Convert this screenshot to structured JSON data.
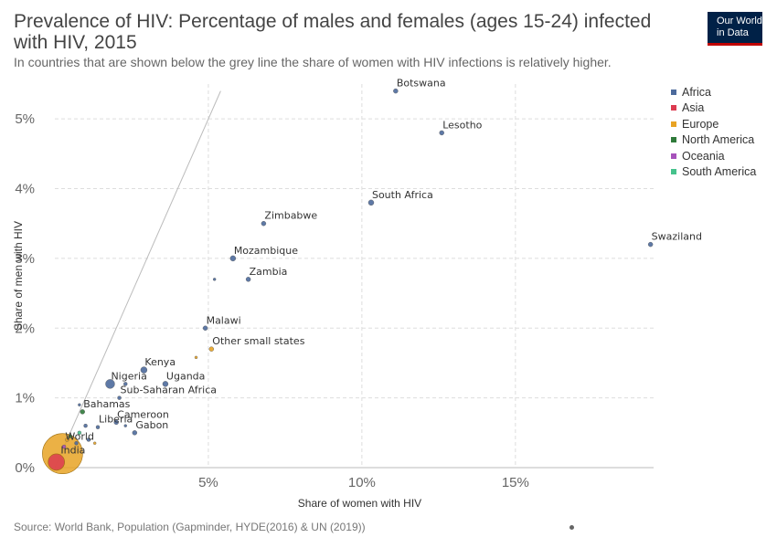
{
  "header": {
    "title": "Prevalence of HIV: Percentage of males and females (ages 15-24) infected with HIV, 2015",
    "subtitle": "In countries that are shown below the grey line the share of women with HIV infections is relatively higher."
  },
  "logo": {
    "line1": "Our World",
    "line2": "in Data"
  },
  "footer": {
    "source": "Source: World Bank, Population (Gapminder, HYDE(2016) & UN (2019))"
  },
  "legend": [
    {
      "label": "Africa",
      "color": "#4C6A9C"
    },
    {
      "label": "Asia",
      "color": "#DC3B50"
    },
    {
      "label": "Europe",
      "color": "#E8A324"
    },
    {
      "label": "North America",
      "color": "#2F7A3A"
    },
    {
      "label": "Oceania",
      "color": "#A652BA"
    },
    {
      "label": "South America",
      "color": "#45C28C"
    }
  ],
  "chart_data": {
    "type": "scatter",
    "xlabel": "Share of women with HIV",
    "ylabel": "Share of men with HIV",
    "xlim": [
      0,
      19.5
    ],
    "ylim": [
      0,
      5.5
    ],
    "x_ticks": [
      {
        "v": 5,
        "label": "5%"
      },
      {
        "v": 10,
        "label": "10%"
      },
      {
        "v": 15,
        "label": "15%"
      }
    ],
    "y_ticks": [
      {
        "v": 0,
        "label": "0%"
      },
      {
        "v": 1,
        "label": "1%"
      },
      {
        "v": 2,
        "label": "2%"
      },
      {
        "v": 3,
        "label": "3%"
      },
      {
        "v": 4,
        "label": "4%"
      },
      {
        "v": 5,
        "label": "5%"
      }
    ],
    "grid": true,
    "legend_position": "right",
    "reference_line": "y = x",
    "points": [
      {
        "label": "Botswana",
        "region": "Africa",
        "x": 11.1,
        "y": 5.4,
        "size": 2.5
      },
      {
        "label": "Lesotho",
        "region": "Africa",
        "x": 12.6,
        "y": 4.8,
        "size": 2.5
      },
      {
        "label": "South Africa",
        "region": "Africa",
        "x": 10.3,
        "y": 3.8,
        "size": 3
      },
      {
        "label": "Swaziland",
        "region": "Africa",
        "x": 19.4,
        "y": 3.2,
        "size": 2.5
      },
      {
        "label": "Zimbabwe",
        "region": "Africa",
        "x": 6.8,
        "y": 3.5,
        "size": 2.5
      },
      {
        "label": "Mozambique",
        "region": "Africa",
        "x": 5.8,
        "y": 3.0,
        "size": 3
      },
      {
        "label": "Zambia",
        "region": "Africa",
        "x": 6.3,
        "y": 2.7,
        "size": 2.5
      },
      {
        "label": "",
        "region": "Africa",
        "x": 5.2,
        "y": 2.7,
        "size": 1.5
      },
      {
        "label": "Malawi",
        "region": "Africa",
        "x": 4.9,
        "y": 2.0,
        "size": 2.5
      },
      {
        "label": "Other small states",
        "region": "Europe",
        "x": 5.1,
        "y": 1.7,
        "size": 2.5
      },
      {
        "label": "",
        "region": "Europe",
        "x": 4.6,
        "y": 1.58,
        "size": 1.5
      },
      {
        "label": "Kenya",
        "region": "Africa",
        "x": 2.9,
        "y": 1.4,
        "size": 3.5
      },
      {
        "label": "Nigeria",
        "region": "Africa",
        "x": 1.8,
        "y": 1.2,
        "size": 5
      },
      {
        "label": "Uganda",
        "region": "Africa",
        "x": 3.6,
        "y": 1.2,
        "size": 3
      },
      {
        "label": "",
        "region": "Africa",
        "x": 2.3,
        "y": 1.2,
        "size": 2
      },
      {
        "label": "Sub-Saharan Africa",
        "region": "Africa",
        "x": 2.1,
        "y": 1.0,
        "size": 2
      },
      {
        "label": "Bahamas",
        "region": "North America",
        "x": 0.9,
        "y": 0.8,
        "size": 2.5
      },
      {
        "label": "",
        "region": "Africa",
        "x": 0.8,
        "y": 0.9,
        "size": 1.5
      },
      {
        "label": "Cameroon",
        "region": "Africa",
        "x": 2.0,
        "y": 0.65,
        "size": 2.5
      },
      {
        "label": "Liberia",
        "region": "Africa",
        "x": 1.4,
        "y": 0.58,
        "size": 2
      },
      {
        "label": "Gabon",
        "region": "Africa",
        "x": 2.6,
        "y": 0.5,
        "size": 2.5
      },
      {
        "label": "",
        "region": "Africa",
        "x": 2.3,
        "y": 0.6,
        "size": 1.5
      },
      {
        "label": "",
        "region": "Africa",
        "x": 1.0,
        "y": 0.6,
        "size": 2
      },
      {
        "label": "",
        "region": "South America",
        "x": 0.8,
        "y": 0.5,
        "size": 2
      },
      {
        "label": "",
        "region": "North America",
        "x": 0.5,
        "y": 0.45,
        "size": 2
      },
      {
        "label": "",
        "region": "Africa",
        "x": 1.1,
        "y": 0.4,
        "size": 2
      },
      {
        "label": "",
        "region": "Africa",
        "x": 0.7,
        "y": 0.35,
        "size": 2
      },
      {
        "label": "",
        "region": "Oceania",
        "x": 0.3,
        "y": 0.3,
        "size": 2
      },
      {
        "label": "",
        "region": "Europe",
        "x": 1.3,
        "y": 0.35,
        "size": 1.5
      },
      {
        "label": "World",
        "region": "Europe",
        "x": 0.4,
        "y": 0.4,
        "size": 2
      },
      {
        "label": "India",
        "region": "Europe",
        "x": 0.25,
        "y": 0.2,
        "size": 22
      },
      {
        "label": "",
        "region": "Asia",
        "x": 0.05,
        "y": 0.08,
        "size": 9
      }
    ]
  }
}
